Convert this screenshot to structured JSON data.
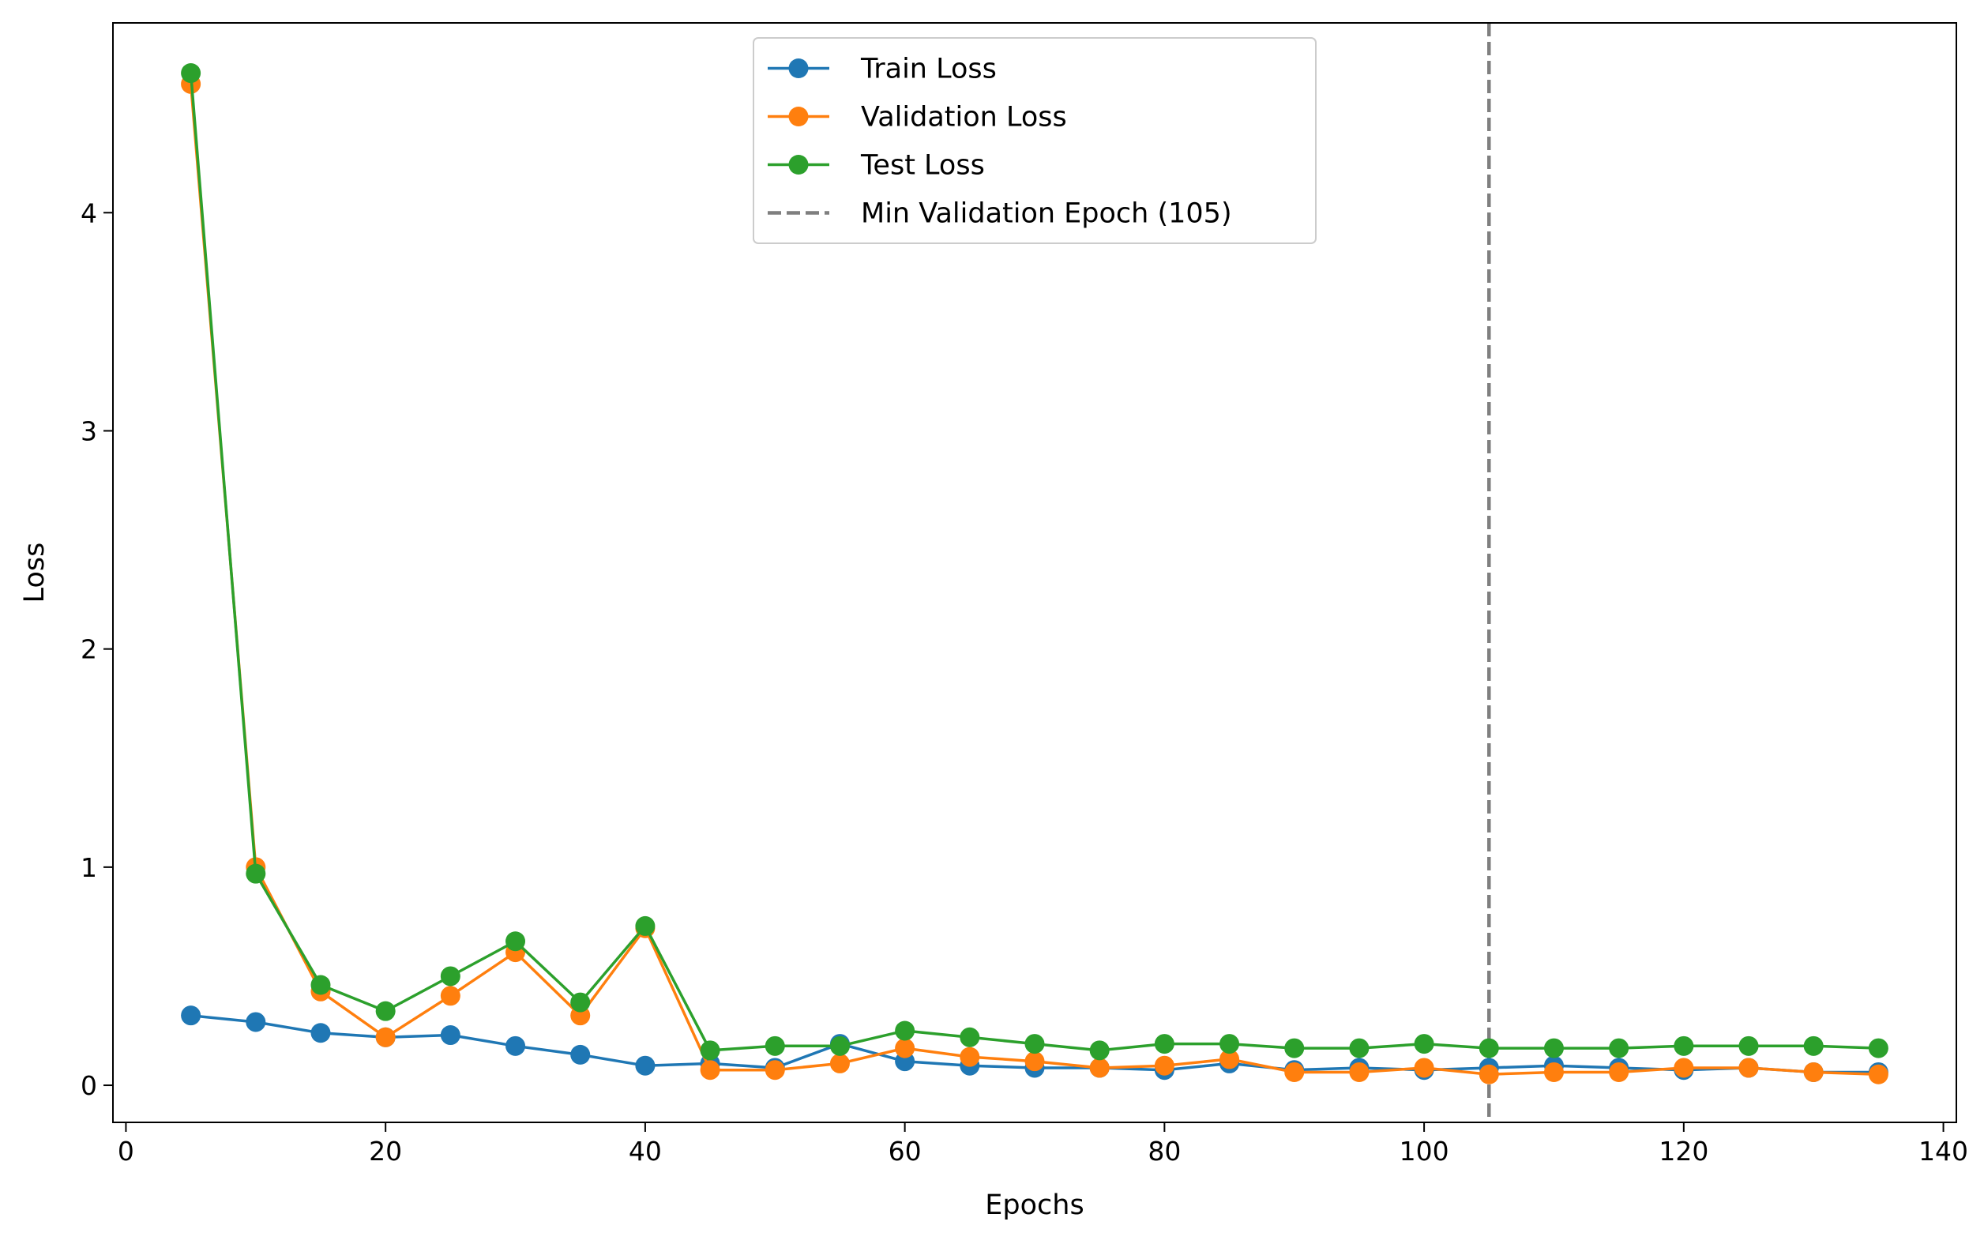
{
  "chart_data": {
    "type": "line",
    "title": "",
    "xlabel": "Epochs",
    "ylabel": "Loss",
    "xlim": [
      -1,
      141
    ],
    "ylim": [
      -0.17,
      4.87
    ],
    "xticks": [
      0,
      20,
      40,
      60,
      80,
      100,
      120,
      140
    ],
    "yticks": [
      0,
      1,
      2,
      3,
      4
    ],
    "x": [
      5,
      10,
      15,
      20,
      25,
      30,
      35,
      40,
      45,
      50,
      55,
      60,
      65,
      70,
      75,
      80,
      85,
      90,
      95,
      100,
      105,
      110,
      115,
      120,
      125,
      130,
      135
    ],
    "series": [
      {
        "name": "Train Loss",
        "color": "#1f77b4",
        "values": [
          0.32,
          0.29,
          0.24,
          0.22,
          0.23,
          0.18,
          0.14,
          0.09,
          0.1,
          0.08,
          0.19,
          0.11,
          0.09,
          0.08,
          0.08,
          0.07,
          0.1,
          0.07,
          0.08,
          0.07,
          0.08,
          0.09,
          0.08,
          0.07,
          0.08,
          0.06,
          0.06
        ]
      },
      {
        "name": "Validation Loss",
        "color": "#ff7f0e",
        "values": [
          4.59,
          1.0,
          0.43,
          0.22,
          0.41,
          0.61,
          0.32,
          0.72,
          0.07,
          0.07,
          0.1,
          0.17,
          0.13,
          0.11,
          0.08,
          0.09,
          0.12,
          0.06,
          0.06,
          0.08,
          0.05,
          0.06,
          0.06,
          0.08,
          0.08,
          0.06,
          0.05
        ]
      },
      {
        "name": "Test Loss",
        "color": "#2ca02c",
        "values": [
          4.64,
          0.97,
          0.46,
          0.34,
          0.5,
          0.66,
          0.38,
          0.73,
          0.16,
          0.18,
          0.18,
          0.25,
          0.22,
          0.19,
          0.16,
          0.19,
          0.19,
          0.17,
          0.17,
          0.19,
          0.17,
          0.17,
          0.17,
          0.18,
          0.18,
          0.18,
          0.17
        ]
      }
    ],
    "vline": {
      "x": 105,
      "label": "Min Validation Epoch (105)",
      "color": "#7f7f7f",
      "style": "dashed"
    },
    "legend": {
      "position": "upper-center"
    },
    "grid": false
  }
}
